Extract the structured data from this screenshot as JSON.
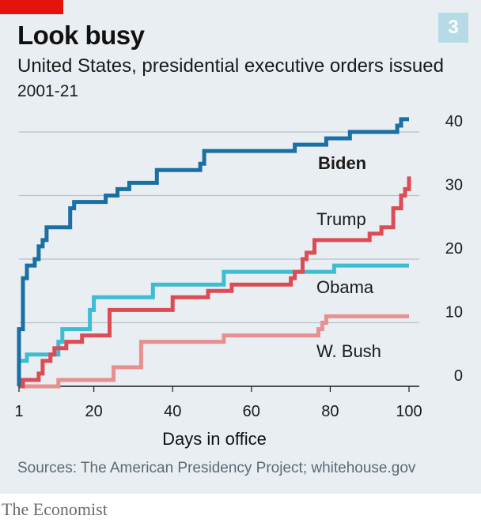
{
  "header": {
    "title": "Look busy",
    "subtitle": "United States, presidential executive orders issued",
    "date_range": "2001-21",
    "chart_number": "3"
  },
  "footer": {
    "source": "Sources: The American Presidency Project; whitehouse.gov",
    "brand": "The Economist"
  },
  "colors": {
    "accent_red": "#e3120b",
    "background": "#e9eef2",
    "gridline": "#b5c2ca",
    "biden": "#1a6fa3",
    "trump": "#db4c55",
    "obama": "#3ebcd2",
    "bush": "#e8908f"
  },
  "chart_data": {
    "type": "line",
    "title": "Look busy",
    "subtitle": "United States, presidential executive orders issued",
    "xlabel": "Days in office",
    "ylabel": "",
    "xlim": [
      1,
      100
    ],
    "ylim": [
      0,
      40
    ],
    "x_ticks": [
      1,
      20,
      40,
      60,
      80,
      100
    ],
    "y_ticks": [
      0,
      10,
      20,
      30,
      40
    ],
    "grid": "horizontal",
    "step": true,
    "series": [
      {
        "name": "Biden",
        "color": "#1a6fa3",
        "label_bold": true,
        "points": [
          [
            1,
            0
          ],
          [
            1,
            9
          ],
          [
            2,
            17
          ],
          [
            3,
            19
          ],
          [
            5,
            20
          ],
          [
            6,
            22
          ],
          [
            7,
            23
          ],
          [
            8,
            25
          ],
          [
            14,
            28
          ],
          [
            15,
            29
          ],
          [
            23,
            30
          ],
          [
            26,
            31
          ],
          [
            29,
            32
          ],
          [
            36,
            34
          ],
          [
            47,
            35
          ],
          [
            48,
            37
          ],
          [
            71,
            38
          ],
          [
            79,
            39
          ],
          [
            85,
            40
          ],
          [
            97,
            41
          ],
          [
            98,
            42
          ],
          [
            100,
            42
          ]
        ]
      },
      {
        "name": "Trump",
        "color": "#db4c55",
        "label_bold": false,
        "points": [
          [
            1,
            0
          ],
          [
            2,
            1
          ],
          [
            6,
            2
          ],
          [
            7,
            4
          ],
          [
            9,
            5
          ],
          [
            10,
            6
          ],
          [
            13,
            7
          ],
          [
            17,
            8
          ],
          [
            24,
            12
          ],
          [
            40,
            14
          ],
          [
            49,
            15
          ],
          [
            55,
            16
          ],
          [
            70,
            17
          ],
          [
            71,
            18
          ],
          [
            73,
            20
          ],
          [
            74,
            21
          ],
          [
            76,
            23
          ],
          [
            90,
            24
          ],
          [
            93,
            25
          ],
          [
            96,
            28
          ],
          [
            98,
            30
          ],
          [
            99,
            31
          ],
          [
            100,
            33
          ]
        ]
      },
      {
        "name": "Obama",
        "color": "#3ebcd2",
        "label_bold": false,
        "points": [
          [
            1,
            0
          ],
          [
            1,
            4
          ],
          [
            3,
            5
          ],
          [
            11,
            7
          ],
          [
            12,
            9
          ],
          [
            19,
            12
          ],
          [
            20,
            14
          ],
          [
            35,
            16
          ],
          [
            53,
            18
          ],
          [
            81,
            19
          ],
          [
            100,
            19
          ]
        ]
      },
      {
        "name": "W. Bush",
        "color": "#e8908f",
        "label_bold": false,
        "points": [
          [
            1,
            0
          ],
          [
            11,
            1
          ],
          [
            25,
            3
          ],
          [
            32,
            7
          ],
          [
            53,
            8
          ],
          [
            77,
            9
          ],
          [
            78,
            10
          ],
          [
            79,
            11
          ],
          [
            100,
            11
          ]
        ]
      }
    ]
  }
}
